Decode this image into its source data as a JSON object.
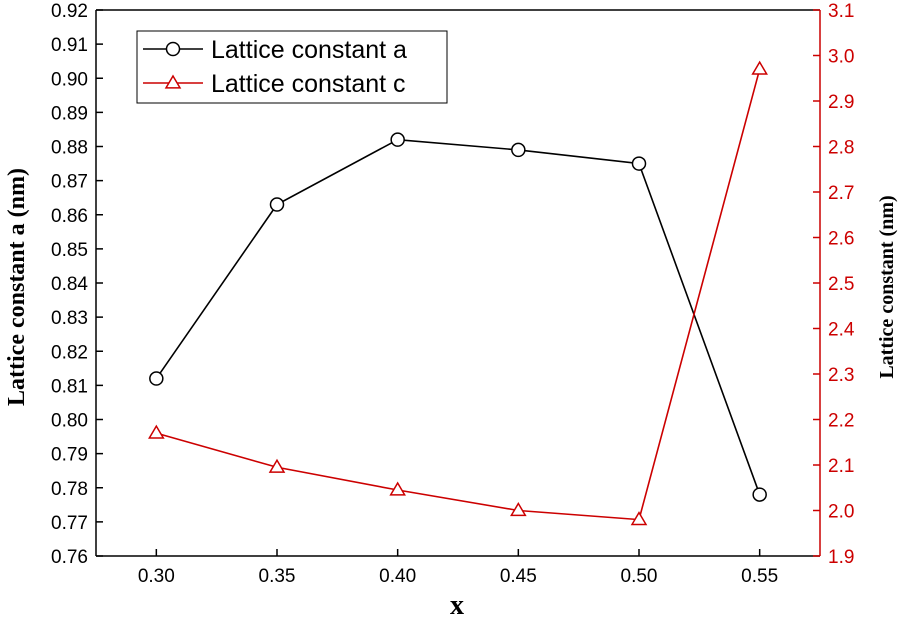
{
  "chart_data": {
    "type": "line",
    "title": "",
    "xlabel": "x",
    "ylabel_left": "Lattice constant a (nm)",
    "ylabel_right": "Lattice constant (nm)",
    "x": [
      0.3,
      0.35,
      0.4,
      0.45,
      0.5,
      0.55
    ],
    "x_tick_labels": [
      "0.30",
      "0.35",
      "0.40",
      "0.45",
      "0.50",
      "0.55"
    ],
    "xlim": [
      0.275,
      0.575
    ],
    "ylim_left": [
      0.76,
      0.92
    ],
    "ylim_right": [
      1.9,
      3.1
    ],
    "y_left_tick_labels": [
      "0.76",
      "0.77",
      "0.78",
      "0.79",
      "0.80",
      "0.81",
      "0.82",
      "0.83",
      "0.84",
      "0.85",
      "0.86",
      "0.87",
      "0.88",
      "0.89",
      "0.90",
      "0.91",
      "0.92"
    ],
    "y_right_tick_labels": [
      "1.9",
      "2.0",
      "2.1",
      "2.2",
      "2.3",
      "2.4",
      "2.5",
      "2.6",
      "2.7",
      "2.8",
      "2.9",
      "3.0",
      "3.1"
    ],
    "grid": false,
    "legend_position": "top-left",
    "series": [
      {
        "name": "Lattice constant a",
        "axis": "left",
        "marker": "circle",
        "color": "#000000",
        "values": [
          0.812,
          0.863,
          0.882,
          0.879,
          0.875,
          0.778
        ]
      },
      {
        "name": "Lattice constant c",
        "axis": "right",
        "marker": "triangle",
        "color": "#cc0000",
        "values": [
          2.17,
          2.095,
          2.045,
          2.0,
          1.98,
          2.97
        ]
      }
    ]
  }
}
